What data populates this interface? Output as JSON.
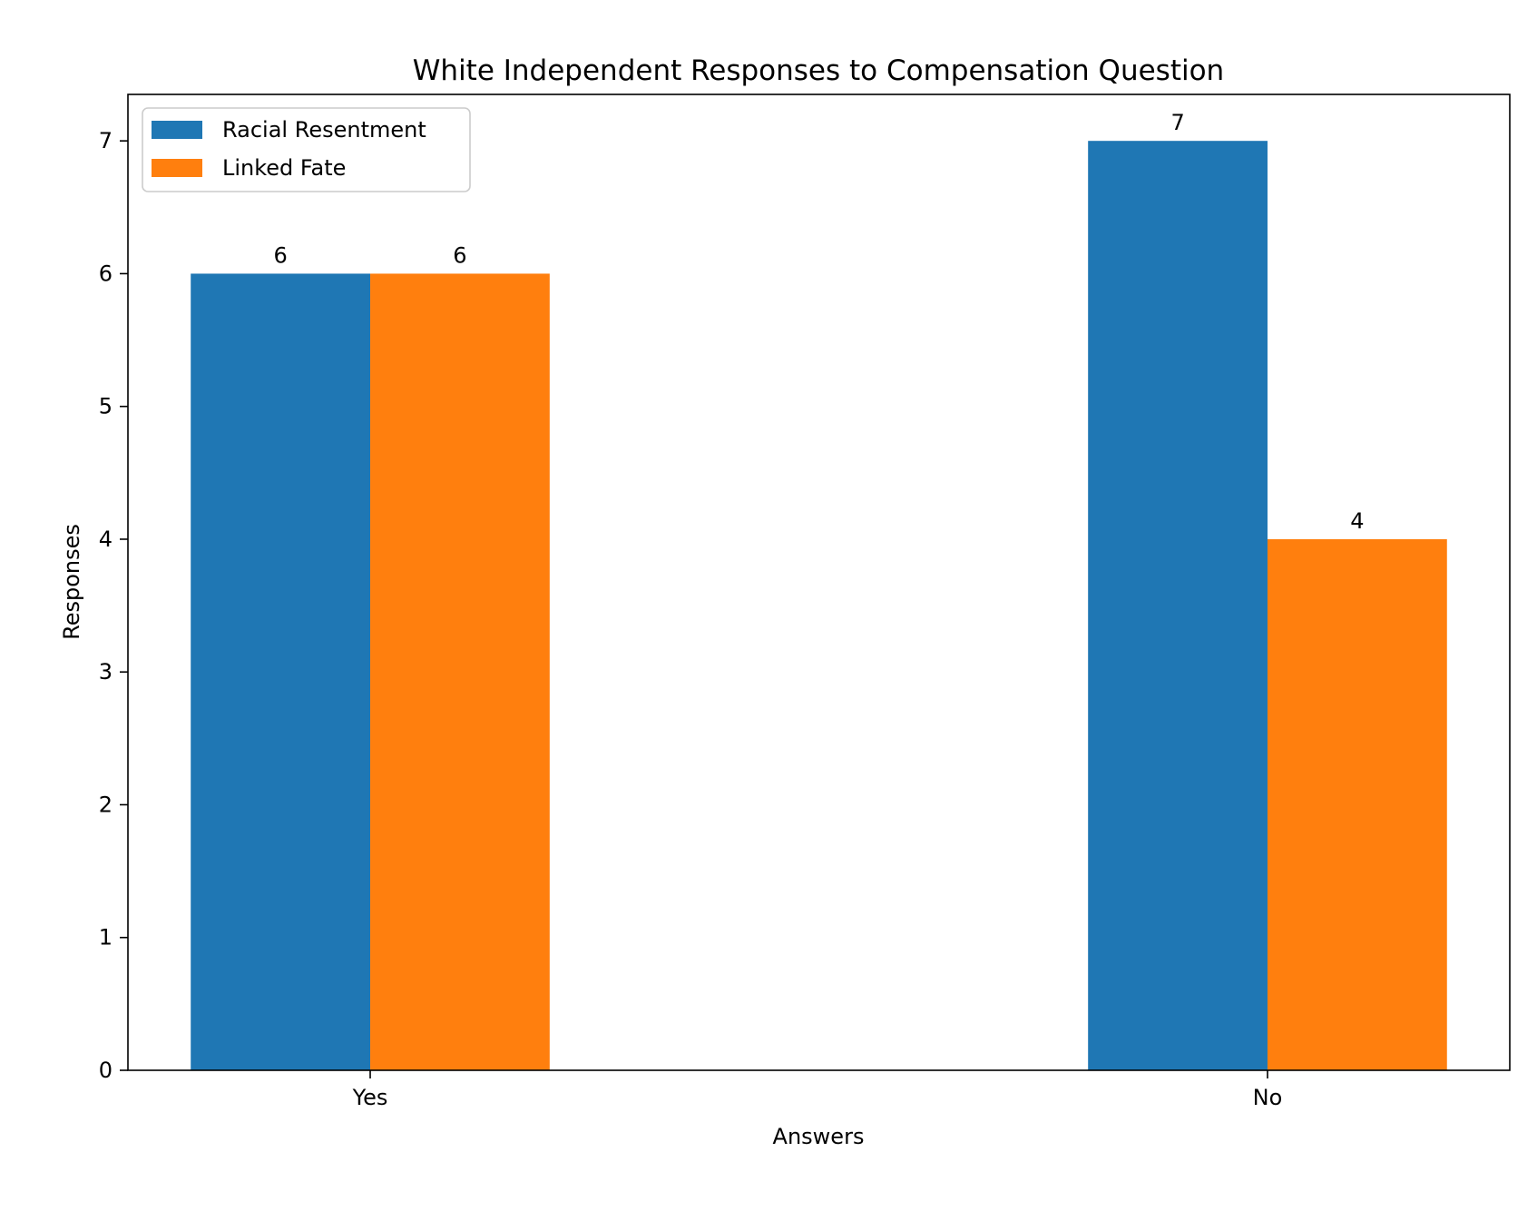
{
  "chart_data": {
    "type": "bar",
    "title": "White Independent Responses to Compensation Question",
    "xlabel": "Answers",
    "ylabel": "Responses",
    "categories": [
      "Yes",
      "No"
    ],
    "series": [
      {
        "name": "Racial Resentment",
        "values": [
          6,
          7
        ],
        "color": "#1f77b4"
      },
      {
        "name": "Linked Fate",
        "values": [
          6,
          4
        ],
        "color": "#ff7f0e"
      }
    ],
    "ylim": [
      0,
      7.35
    ],
    "yticks": [
      0,
      1,
      2,
      3,
      4,
      5,
      6,
      7
    ],
    "grid": false,
    "legend_position": "top-left"
  }
}
